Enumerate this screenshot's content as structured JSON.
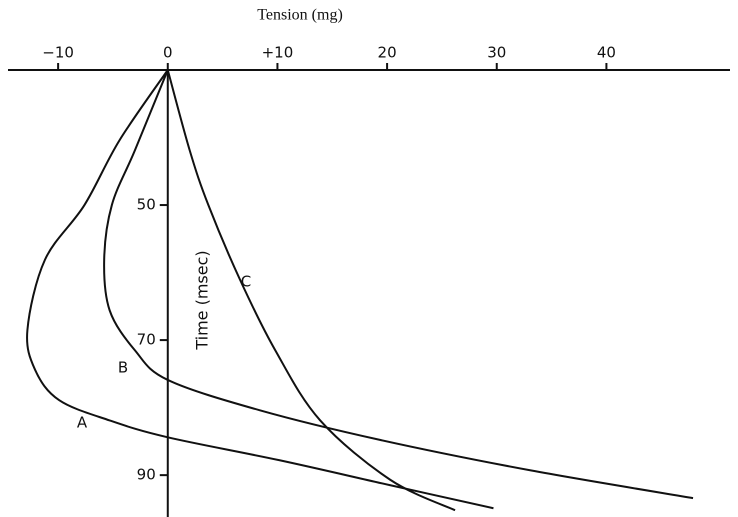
{
  "chart_data": {
    "type": "line",
    "x_label": "Tension (mg)",
    "y_label": "Time (msec)",
    "xlim": [
      -15.3,
      52
    ],
    "ylim": [
      30,
      96.2
    ],
    "xticks": [
      {
        "value": -10,
        "label": "−10"
      },
      0,
      {
        "value": 10,
        "label": "+10"
      },
      20,
      30,
      40
    ],
    "yticks": [
      50,
      70,
      90
    ],
    "y_inverted": true,
    "grid": false,
    "color": "#111111",
    "series": [
      {
        "name": "A",
        "x": [
          0,
          -4.4,
          -7.6,
          -11.2,
          -12.8,
          -12.1,
          -9.9,
          -5.3,
          0,
          10.2,
          20.3,
          29.7
        ],
        "values": [
          30,
          40.4,
          50,
          58.1,
          68.5,
          74.4,
          78.9,
          81.9,
          84.4,
          87.8,
          91.5,
          94.9
        ]
      },
      {
        "name": "B",
        "x": [
          0,
          -3,
          -5.1,
          -5.8,
          -5.3,
          -3,
          0,
          8.4,
          19.4,
          33.1,
          47.9
        ],
        "values": [
          30,
          41.9,
          50,
          58.1,
          65.6,
          71.5,
          75.9,
          80.4,
          84.8,
          89.3,
          93.4
        ]
      },
      {
        "name": "C",
        "x": [
          0,
          2,
          3.7,
          6.6,
          9.8,
          13.9,
          20.3,
          26.2
        ],
        "values": [
          30,
          41.9,
          50,
          61.1,
          71.5,
          81.9,
          90.7,
          95.2
        ]
      }
    ]
  }
}
